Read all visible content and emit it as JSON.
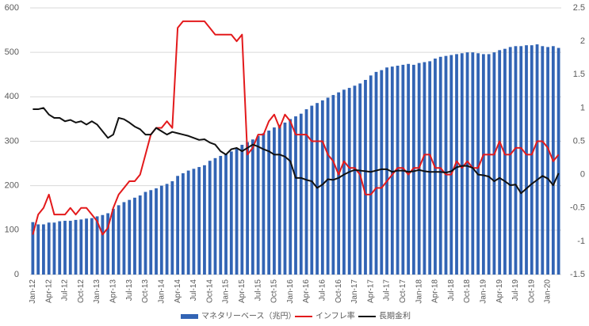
{
  "chart_data": {
    "type": "bar-line",
    "categories": [
      "Jan-12",
      null,
      null,
      "Apr-12",
      null,
      null,
      "Jul-12",
      null,
      null,
      "Oct-12",
      null,
      null,
      "Jan-13",
      null,
      null,
      "Apr-13",
      null,
      null,
      "Jul-13",
      null,
      null,
      "Oct-13",
      null,
      null,
      "Jan-14",
      null,
      null,
      "Apr-14",
      null,
      null,
      "Jul-14",
      null,
      null,
      "Oct-14",
      null,
      null,
      "Jan-15",
      null,
      null,
      "Apr-15",
      null,
      null,
      "Jul-15",
      null,
      null,
      "Oct-15",
      null,
      null,
      "Jan-16",
      null,
      null,
      "Apr-16",
      null,
      null,
      "Jul-16",
      null,
      null,
      "Oct-16",
      null,
      null,
      "Jan-17",
      null,
      null,
      "Apr-17",
      null,
      null,
      "Jul-17",
      null,
      null,
      "Oct-17",
      null,
      null,
      "Jan-18",
      null,
      null,
      "Apr-18",
      null,
      null,
      "Jul-18",
      null,
      null,
      "Oct-18",
      null,
      null,
      "Jan-19",
      null,
      null,
      "Apr-19",
      null,
      null,
      "Jul-19",
      null,
      null,
      "Oct-19",
      null,
      null,
      "Jan-20",
      null,
      null
    ],
    "series": [
      {
        "name": "マネタリーベース（兆円）",
        "type": "bar",
        "color": "#3264b4",
        "values": [
          118,
          113,
          113,
          117,
          117,
          120,
          121,
          121,
          123,
          124,
          126,
          127,
          131,
          134,
          138,
          148,
          156,
          163,
          168,
          173,
          178,
          186,
          190,
          194,
          200,
          204,
          210,
          222,
          228,
          234,
          238,
          242,
          246,
          256,
          262,
          267,
          272,
          277,
          283,
          292,
          298,
          304,
          312,
          318,
          324,
          331,
          337,
          342,
          350,
          356,
          362,
          372,
          380,
          386,
          392,
          398,
          404,
          410,
          416,
          420,
          425,
          430,
          438,
          448,
          456,
          460,
          466,
          468,
          470,
          472,
          474,
          472,
          476,
          478,
          480,
          486,
          490,
          492,
          494,
          496,
          498,
          500,
          500,
          498,
          496,
          496,
          500,
          505,
          508,
          512,
          514,
          514,
          516,
          516,
          518,
          514,
          512,
          514,
          510
        ]
      },
      {
        "name": "インフレ率",
        "type": "line",
        "axis": "y2",
        "color": "#e31a1c",
        "values": [
          -0.9,
          -0.6,
          -0.5,
          -0.3,
          -0.6,
          -0.6,
          -0.6,
          -0.5,
          -0.6,
          -0.5,
          -0.5,
          -0.6,
          -0.7,
          -0.9,
          -0.8,
          -0.5,
          -0.3,
          -0.2,
          -0.1,
          -0.1,
          0,
          0.3,
          0.6,
          0.7,
          0.7,
          0.8,
          0.7,
          2.2,
          2.3,
          2.3,
          2.3,
          2.3,
          2.3,
          2.2,
          2.1,
          2.1,
          2.1,
          2.1,
          2.0,
          2.1,
          0.3,
          0.4,
          0.6,
          0.6,
          0.8,
          0.9,
          0.7,
          0.9,
          0.8,
          0.6,
          0.6,
          0.6,
          0.5,
          0.5,
          0.5,
          0.3,
          0.2,
          0,
          0.2,
          0.1,
          0.1,
          0,
          -0.3,
          -0.3,
          -0.2,
          -0.2,
          -0.1,
          0,
          0.1,
          0.1,
          0,
          0.1,
          0.1,
          0.3,
          0.3,
          0.1,
          0.1,
          0,
          0,
          0.2,
          0.1,
          0.2,
          0.1,
          0.1,
          0.3,
          0.3,
          0.3,
          0.5,
          0.3,
          0.3,
          0.4,
          0.4,
          0.3,
          0.3,
          0.5,
          0.5,
          0.4,
          0.2,
          0.3
        ]
      },
      {
        "name": "長期金利",
        "type": "line",
        "axis": "y2",
        "color": "#111111",
        "values": [
          0.98,
          0.98,
          1.0,
          0.9,
          0.85,
          0.85,
          0.8,
          0.82,
          0.78,
          0.8,
          0.75,
          0.8,
          0.75,
          0.65,
          0.55,
          0.6,
          0.85,
          0.83,
          0.78,
          0.72,
          0.68,
          0.6,
          0.6,
          0.7,
          0.65,
          0.6,
          0.64,
          0.62,
          0.6,
          0.58,
          0.55,
          0.52,
          0.53,
          0.48,
          0.45,
          0.35,
          0.3,
          0.38,
          0.4,
          0.35,
          0.4,
          0.45,
          0.42,
          0.38,
          0.35,
          0.3,
          0.3,
          0.27,
          0.2,
          -0.05,
          -0.05,
          -0.08,
          -0.1,
          -0.2,
          -0.15,
          -0.07,
          -0.08,
          -0.05,
          0,
          0.04,
          0.07,
          0.06,
          0.05,
          0.04,
          0.06,
          0.08,
          0.08,
          0.04,
          0.06,
          0.06,
          0.04,
          0.05,
          0.07,
          0.05,
          0.04,
          0.04,
          0.04,
          0.03,
          0.05,
          0.11,
          0.13,
          0.13,
          0.1,
          0,
          -0.01,
          -0.03,
          -0.1,
          -0.05,
          -0.1,
          -0.16,
          -0.15,
          -0.28,
          -0.21,
          -0.14,
          -0.08,
          -0.02,
          -0.06,
          -0.16,
          0.02
        ]
      }
    ],
    "ylim": [
      0,
      600
    ],
    "yticks": [
      0,
      100,
      200,
      300,
      400,
      500,
      600
    ],
    "y2lim": [
      -1.5,
      2.5
    ],
    "y2ticks": [
      -1.5,
      -1,
      -0.5,
      0,
      0.5,
      1,
      1.5,
      2,
      2.5
    ],
    "grid": true,
    "legend": "bottom"
  }
}
